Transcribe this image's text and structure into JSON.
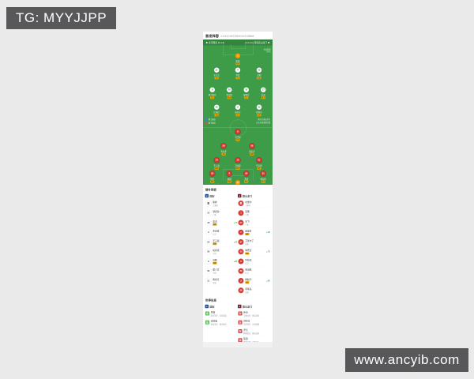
{
  "watermarks": {
    "tg": "TG: MYYJJPP",
    "site": "www.ancyib.com"
  },
  "colors": {
    "pitch": "#3e9c49",
    "home_jersey": "#ffffff",
    "home_number": "#2e7d32",
    "gk_jersey": "#f59b00",
    "away_jersey": "#d63c34",
    "rating_badge": "#f0ab00",
    "accent_green": "#2faa4a",
    "watermark_bg": "#58585a"
  },
  "lineup": {
    "title": "首发阵容",
    "subtitle": "点击球员头像可查看球员本场详细数据",
    "pitch": {
      "home_label": "北京国安 (3-4-3)",
      "away_label": "(4-3-2-1) 河南嵩山龙门",
      "side_info": [
        "主队阵型",
        "3-4-3"
      ],
      "legend": [
        {
          "label": "换上球员"
        },
        {
          "label": "换下球员"
        }
      ],
      "notes": [
        "黄色为球员评分",
        "点击头像查看详情"
      ],
      "home_rows": [
        [
          {
            "num": "1",
            "name": "侯森",
            "rating": "6.9"
          }
        ],
        [
          {
            "num": "21",
            "name": "于大宝",
            "rating": "7.0"
          },
          {
            "num": "4",
            "name": "李磊",
            "rating": "7.2"
          },
          {
            "num": "23",
            "name": "王刚",
            "rating": "6.8"
          }
        ],
        [
          {
            "num": "8",
            "name": "奥古斯托",
            "rating": "7.5"
          },
          {
            "num": "28",
            "name": "池忠国",
            "rating": "6.9"
          },
          {
            "num": "10",
            "name": "张稀哲",
            "rating": "7.3"
          },
          {
            "num": "17",
            "name": "朴成",
            "rating": "6.7"
          }
        ],
        [
          {
            "num": "20",
            "name": "比埃拉",
            "rating": "7.8"
          },
          {
            "num": "9",
            "name": "张玉宁",
            "rating": "7.1"
          },
          {
            "num": "40",
            "name": "巴坎布",
            "rating": "6.6"
          }
        ]
      ],
      "away_rows": [
        [
          {
            "num": "9",
            "name": "卡兰加",
            "rating": "7.4"
          }
        ],
        [
          {
            "num": "29",
            "name": "多拉多",
            "rating": "7.0"
          },
          {
            "num": "26",
            "name": "周定洋",
            "rating": "6.8"
          }
        ],
        [
          {
            "num": "14",
            "name": "王上源",
            "rating": "6.9"
          },
          {
            "num": "16",
            "name": "冯卓毅",
            "rating": "6.5"
          },
          {
            "num": "21",
            "name": "马兴煜",
            "rating": "6.7"
          }
        ],
        [
          {
            "num": "25",
            "name": "柯钊",
            "rating": "6.6"
          },
          {
            "num": "4",
            "name": "顾操",
            "rating": "6.8"
          },
          {
            "num": "20",
            "name": "罗歆",
            "rating": "6.4"
          },
          {
            "num": "31",
            "name": "杨国元",
            "rating": "6.7"
          }
        ],
        [
          {
            "num": "17",
            "name": "王国明",
            "rating": "7.2"
          }
        ]
      ]
    }
  },
  "subs": {
    "title": "替补阵容",
    "home": {
      "name": "国安"
    },
    "away": {
      "name": "嵩山龙门"
    },
    "left": [
      {
        "num": "教",
        "name": "谢峰",
        "role": "主教练",
        "rating": "",
        "minute": ""
      },
      {
        "num": "12",
        "name": "邹德海",
        "role": "门将",
        "rating": "",
        "minute": ""
      },
      {
        "num": "18",
        "name": "姜涛",
        "role": "",
        "rating": "6.5",
        "minute": "▲75'"
      },
      {
        "num": "3",
        "name": "金泰延",
        "role": "后卫",
        "rating": "",
        "minute": ""
      },
      {
        "num": "25",
        "name": "王子铭",
        "role": "",
        "rating": "6.8",
        "minute": "▲62'"
      },
      {
        "num": "26",
        "name": "侯永永",
        "role": "中场",
        "rating": "",
        "minute": ""
      },
      {
        "num": "6",
        "name": "吕鹏",
        "role": "",
        "rating": "6.3",
        "minute": "▲80'"
      },
      {
        "num": "33",
        "name": "梁少文",
        "role": "中场",
        "rating": "",
        "minute": ""
      },
      {
        "num": "11",
        "name": "曹永竞",
        "role": "前锋",
        "rating": "",
        "minute": ""
      }
    ],
    "right": [
      {
        "num": "教",
        "name": "哈维尔",
        "role": "主教练",
        "rating": "",
        "minute": ""
      },
      {
        "num": "1",
        "name": "吴龑",
        "role": "门将",
        "rating": "",
        "minute": ""
      },
      {
        "num": "22",
        "name": "王飞",
        "role": "门将",
        "rating": "",
        "minute": ""
      },
      {
        "num": "7",
        "name": "迪奥普",
        "role": "",
        "rating": "6.7",
        "minute": "▲58'"
      },
      {
        "num": "37",
        "name": "艾菲尔丁",
        "role": "前锋",
        "rating": "",
        "minute": ""
      },
      {
        "num": "13",
        "name": "钟晋宝",
        "role": "",
        "rating": "6.4",
        "minute": "▲70'"
      },
      {
        "num": "5",
        "name": "牛梓屹",
        "role": "后卫",
        "rating": "",
        "minute": ""
      },
      {
        "num": "39",
        "name": "朱旭航",
        "role": "后卫",
        "rating": "",
        "minute": ""
      },
      {
        "num": "2",
        "name": "杨超声",
        "role": "",
        "rating": "6.2",
        "minute": "▲85'"
      },
      {
        "num": "36",
        "name": "黄紫昌",
        "role": "前锋",
        "rating": "",
        "minute": ""
      }
    ]
  },
  "injuries": {
    "title": "伤停信息",
    "home": {
      "name": "国安"
    },
    "away": {
      "name": "嵩山龙门"
    },
    "left": [
      {
        "icon": "伤",
        "name": "巴顿",
        "detail": "肌肉受伤 · 出战成疑"
      },
      {
        "icon": "伤",
        "name": "金玟哉",
        "detail": "膝盖受伤 · 确定缺席"
      }
    ],
    "right": [
      {
        "icon": "伤",
        "name": "伊沃",
        "detail": "大腿拉伤 · 确定缺席"
      },
      {
        "icon": "伤",
        "name": "舒尼奇",
        "detail": "背部受伤 · 出战成疑"
      },
      {
        "icon": "伤",
        "name": "罗竞",
        "detail": "脚踝受伤 · 确定缺席"
      },
      {
        "icon": "停",
        "name": "陈灏",
        "detail": "累积黄牌 · 停赛1场"
      }
    ]
  }
}
